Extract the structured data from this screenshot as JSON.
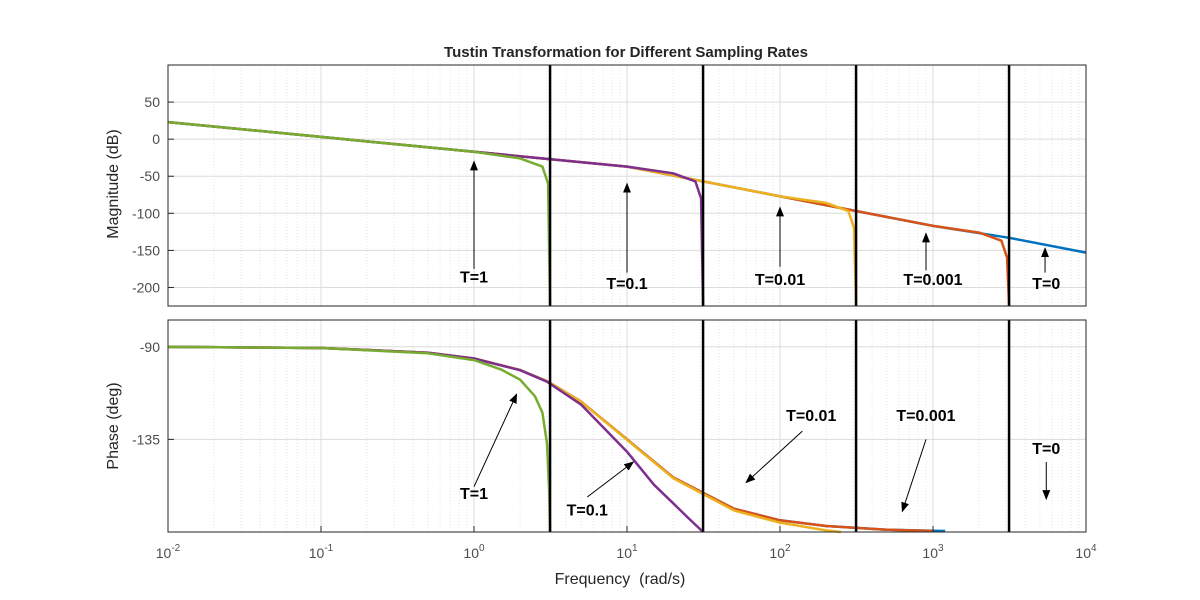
{
  "chart_data": [
    {
      "type": "line",
      "title": "Tustin Transformation for Different Sampling Rates",
      "ylabel": "Magnitude (dB)",
      "xlabel": "",
      "xscale": "log",
      "xlim": [
        0.01,
        10000
      ],
      "ylim": [
        -225,
        100
      ],
      "yticks": [
        50,
        0,
        -50,
        -100,
        -150,
        -200
      ],
      "ytick_labels": [
        "50",
        "0",
        "-50",
        "-100",
        "-150",
        "-200"
      ],
      "grid": true,
      "minor_grid": true,
      "legend": "none",
      "nyquist_lines_x": [
        3.1416,
        31.416,
        314.16,
        3141.6
      ],
      "series": [
        {
          "label": "T=0",
          "color": "#0072BD",
          "x": [
            0.01,
            0.1,
            1,
            10,
            100,
            1000,
            3141.6,
            10000
          ],
          "y": [
            23,
            3,
            -17,
            -37,
            -77,
            -117,
            -133,
            -153
          ]
        },
        {
          "label": "T=0.001",
          "color": "#D95319",
          "x": [
            0.01,
            0.1,
            1,
            10,
            100,
            1000,
            2000,
            2800,
            3050,
            3141.6
          ],
          "y": [
            23,
            3,
            -17,
            -37,
            -77,
            -117,
            -126,
            -137,
            -160,
            -225
          ]
        },
        {
          "label": "T=0.01",
          "color": "#EDB120",
          "x": [
            0.01,
            0.1,
            1,
            10,
            100,
            200,
            280,
            305,
            314.16
          ],
          "y": [
            23,
            3,
            -17,
            -37,
            -77,
            -86,
            -97,
            -120,
            -225
          ]
        },
        {
          "label": "T=0.1",
          "color": "#7E2F8E",
          "x": [
            0.01,
            0.1,
            1,
            10,
            20,
            28,
            30.5,
            31.416
          ],
          "y": [
            23,
            3,
            -17,
            -37,
            -46,
            -57,
            -80,
            -225
          ]
        },
        {
          "label": "T=1",
          "color": "#77AC30",
          "x": [
            0.01,
            0.1,
            1,
            2,
            2.8,
            3.05,
            3.1416
          ],
          "y": [
            23,
            3,
            -17,
            -26,
            -37,
            -60,
            -225
          ]
        }
      ],
      "annotations": [
        {
          "text": "T=1",
          "label_x": 1,
          "label_y": -193,
          "arrow_tail": [
            1,
            -175
          ],
          "arrow_head": [
            1,
            -30
          ]
        },
        {
          "text": "T=0.1",
          "label_x": 10,
          "label_y": -202,
          "arrow_tail": [
            10,
            -180
          ],
          "arrow_head": [
            10,
            -60
          ]
        },
        {
          "text": "T=0.01",
          "label_x": 100,
          "label_y": -197,
          "arrow_tail": [
            100,
            -172
          ],
          "arrow_head": [
            100,
            -92
          ]
        },
        {
          "text": "T=0.001",
          "label_x": 1000,
          "label_y": -197,
          "arrow_tail": [
            900,
            -177
          ],
          "arrow_head": [
            900,
            -127
          ]
        },
        {
          "text": "T=0",
          "label_x": 5500,
          "label_y": -202,
          "arrow_tail": [
            5400,
            -180
          ],
          "arrow_head": [
            5400,
            -147
          ]
        }
      ]
    },
    {
      "type": "line",
      "title": "",
      "ylabel": "Phase (deg)",
      "xlabel": "Frequency  (rad/s)",
      "xscale": "log",
      "xlim": [
        0.01,
        10000
      ],
      "ylim": [
        -180,
        -77
      ],
      "yticks": [
        -90,
        -135
      ],
      "ytick_labels": [
        "-90",
        "-135"
      ],
      "xtick_values": [
        0.01,
        0.1,
        1,
        10,
        100,
        1000,
        10000
      ],
      "xtick_labels": [
        [
          "10",
          "-2"
        ],
        [
          "10",
          "-1"
        ],
        [
          "10",
          "0"
        ],
        [
          "10",
          "1"
        ],
        [
          "10",
          "2"
        ],
        [
          "10",
          "3"
        ],
        [
          "10",
          "4"
        ]
      ],
      "grid": true,
      "minor_grid": true,
      "legend": "none",
      "nyquist_lines_x": [
        3.1416,
        31.416,
        314.16,
        3141.6
      ],
      "series": [
        {
          "label": "T=0",
          "color": "#0072BD",
          "x": [
            0.01,
            0.1,
            0.5,
            1,
            2,
            3,
            5,
            10,
            20,
            50,
            100,
            200,
            500,
            1000,
            1200
          ],
          "y": [
            -90.06,
            -90.6,
            -92.9,
            -95.7,
            -101.3,
            -106.7,
            -116.6,
            -135,
            -153.4,
            -168.7,
            -174.3,
            -177.1,
            -178.9,
            -179.4,
            -179.5
          ]
        },
        {
          "label": "T=0.001",
          "color": "#D95319",
          "x": [
            0.01,
            0.1,
            0.5,
            1,
            2,
            3,
            5,
            10,
            20,
            50,
            100,
            200,
            500,
            1000
          ],
          "y": [
            -90.06,
            -90.6,
            -92.9,
            -95.7,
            -101.3,
            -106.7,
            -116.6,
            -135,
            -153.4,
            -168.7,
            -174.3,
            -177.1,
            -178.9,
            -179.5
          ]
        },
        {
          "label": "T=0.01",
          "color": "#EDB120",
          "x": [
            0.01,
            0.1,
            0.5,
            1,
            2,
            3,
            5,
            10,
            20,
            50,
            100,
            200,
            250
          ],
          "y": [
            -90.06,
            -90.6,
            -92.9,
            -95.7,
            -101.3,
            -106.7,
            -116.6,
            -135.2,
            -153.8,
            -169.5,
            -175.5,
            -179.2,
            -180
          ]
        },
        {
          "label": "T=0.1",
          "color": "#7E2F8E",
          "x": [
            0.01,
            0.1,
            0.5,
            1,
            2,
            3,
            5,
            10,
            15,
            20,
            25,
            31.416
          ],
          "y": [
            -90.06,
            -90.6,
            -92.9,
            -95.7,
            -101.4,
            -107,
            -118,
            -141,
            -157,
            -166,
            -173,
            -180
          ]
        },
        {
          "label": "T=1",
          "color": "#77AC30",
          "x": [
            0.01,
            0.1,
            0.5,
            1,
            1.5,
            2,
            2.5,
            2.8,
            3.0,
            3.1,
            3.1416
          ],
          "y": [
            -90.06,
            -90.6,
            -93.2,
            -96.5,
            -101,
            -106,
            -114,
            -122,
            -137,
            -160,
            -180
          ]
        }
      ],
      "annotations": [
        {
          "text": "T=1",
          "label_x": 1,
          "label_y": -164,
          "arrow_tail": [
            1,
            -158
          ],
          "arrow_head": [
            1.9,
            -113
          ]
        },
        {
          "text": "T=0.1",
          "label_x": 5.5,
          "label_y": -172,
          "arrow_tail": [
            5.5,
            -163
          ],
          "arrow_head": [
            11,
            -146
          ]
        },
        {
          "text": "T=0.01",
          "label_x": 160,
          "label_y": -126,
          "arrow_tail": [
            140,
            -131
          ],
          "arrow_head": [
            60,
            -156
          ]
        },
        {
          "text": "T=0.001",
          "label_x": 900,
          "label_y": -126,
          "arrow_tail": [
            900,
            -135
          ],
          "arrow_head": [
            630,
            -170
          ]
        },
        {
          "text": "T=0",
          "label_x": 5500,
          "label_y": -142,
          "arrow_tail": [
            5500,
            -146
          ],
          "arrow_head": [
            5500,
            -164
          ]
        }
      ]
    }
  ]
}
